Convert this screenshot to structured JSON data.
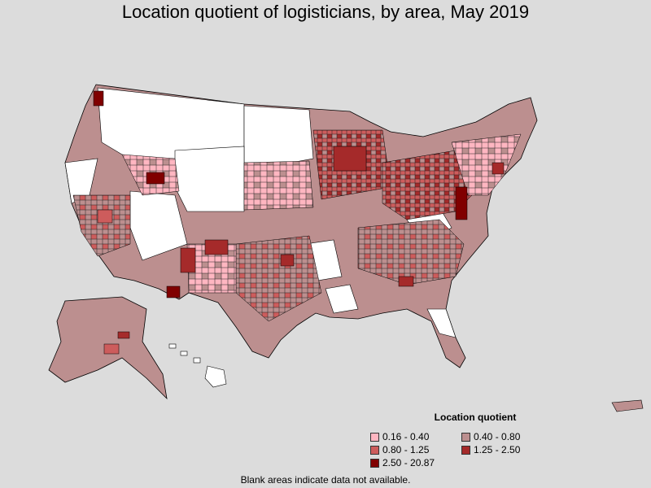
{
  "title": "Location quotient of logisticians, by area, May 2019",
  "legend": {
    "title": "Location quotient",
    "items": [
      {
        "label": "0.16 - 0.40",
        "color": "#ffb6c1"
      },
      {
        "label": "0.40 - 0.80",
        "color": "#bc8f8f"
      },
      {
        "label": "0.80 - 1.25",
        "color": "#cd5c5c"
      },
      {
        "label": "1.25 - 2.50",
        "color": "#a52a2a"
      },
      {
        "label": "2.50 - 20.87",
        "color": "#800000"
      }
    ]
  },
  "footnote": "Blank areas indicate data not available.",
  "colors": {
    "background": "#dcdcdc",
    "no_data": "#ffffff",
    "border": "#000000"
  }
}
